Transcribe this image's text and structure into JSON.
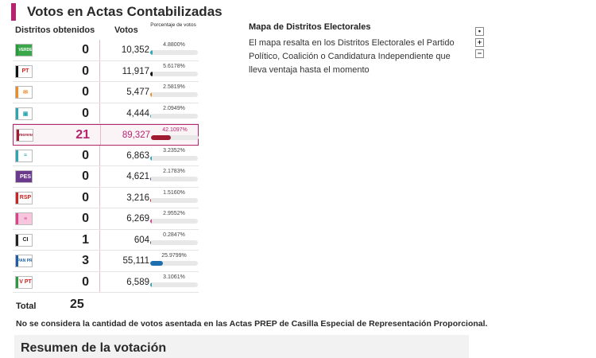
{
  "page_title": "Votos en Actas Contabilizadas",
  "colors": {
    "accent": "#b5246e"
  },
  "table": {
    "headers": {
      "districts": "Distritos obtenidos",
      "votes": "Votos",
      "percent": "Porcentaje de votos"
    },
    "rows": [
      {
        "party": "PVEM",
        "logo": "VERDE",
        "stripe": "#2a9a3e",
        "bg": "#3aa84a",
        "fg": "#ffffff",
        "districts": "0",
        "votes": "10,352",
        "percent": "4.8800%",
        "pct_value": 4.88,
        "bar_color": "#2aa7b5"
      },
      {
        "party": "PT",
        "logo": "PT",
        "stripe": "#111111",
        "bg": "#ffffff",
        "fg": "#d12020",
        "districts": "0",
        "votes": "11,917",
        "percent": "5.6178%",
        "pct_value": 5.6178,
        "bar_color": "#111111"
      },
      {
        "party": "Movimiento Ciudadano",
        "logo": "✉",
        "stripe": "#f08a24",
        "bg": "#ffffff",
        "fg": "#f08a24",
        "districts": "0",
        "votes": "5,477",
        "percent": "2.5819%",
        "pct_value": 2.5819,
        "bar_color": "#f08a24"
      },
      {
        "party": "Nueva Alianza",
        "logo": "▣",
        "stripe": "#2aa7b5",
        "bg": "#ffffff",
        "fg": "#2aa7b5",
        "districts": "0",
        "votes": "4,444",
        "percent": "2.0949%",
        "pct_value": 2.0949,
        "bar_color": "#2aa7b5"
      },
      {
        "party": "morena",
        "logo": "morena",
        "stripe": "#9e1b32",
        "bg": "#ffffff",
        "fg": "#9e1b32",
        "districts": "21",
        "votes": "89,327",
        "percent": "42.1097%",
        "pct_value": 42.1097,
        "bar_color": "#9e1b32",
        "highlight": true
      },
      {
        "party": "Nueva Alianza local",
        "logo": "≈",
        "stripe": "#2aa7b5",
        "bg": "#ffffff",
        "fg": "#2aa7b5",
        "districts": "0",
        "votes": "6,863",
        "percent": "3.2352%",
        "pct_value": 3.2352,
        "bar_color": "#2aa7b5"
      },
      {
        "party": "PES",
        "logo": "PES",
        "stripe": "#6b3a8c",
        "bg": "#6b3a8c",
        "fg": "#ffffff",
        "districts": "0",
        "votes": "4,621",
        "percent": "2.1783%",
        "pct_value": 2.1783,
        "bar_color": "#6b3a8c"
      },
      {
        "party": "RSP",
        "logo": "RSP",
        "stripe": "#d12020",
        "bg": "#ffffff",
        "fg": "#d12020",
        "districts": "0",
        "votes": "3,216",
        "percent": "1.5160%",
        "pct_value": 1.516,
        "bar_color": "#d12020"
      },
      {
        "party": "Fuerza por México",
        "logo": "≡",
        "stripe": "#e2418a",
        "bg": "#f7c6dc",
        "fg": "#e2418a",
        "districts": "0",
        "votes": "6,269",
        "percent": "2.9552%",
        "pct_value": 2.9552,
        "bar_color": "#e2418a"
      },
      {
        "party": "Candidatura Independiente",
        "logo": "CI",
        "stripe": "#222222",
        "bg": "#ffffff",
        "fg": "#222222",
        "districts": "1",
        "votes": "604",
        "percent": "0.2847%",
        "pct_value": 0.2847,
        "bar_color": "#555555"
      },
      {
        "party": "Coalición PAN-PRI-PRD",
        "logo": "PAN PRI",
        "stripe": "#1e5ea8",
        "bg": "#ffffff",
        "fg": "#1e5ea8",
        "districts": "3",
        "votes": "55,111",
        "percent": "25.9799%",
        "pct_value": 25.9799,
        "bar_color": "#1e6fb0"
      },
      {
        "party": "Coalición PVEM-PT",
        "logo": "V PT",
        "stripe": "#2a9a3e",
        "bg": "#ffffff",
        "fg": "#d12020",
        "districts": "0",
        "votes": "6,589",
        "percent": "3.1061%",
        "pct_value": 3.1061,
        "bar_color": "#2aa7b5"
      }
    ],
    "total_label": "Total",
    "total_value": "25"
  },
  "note": "No se considera la cantidad de votos asentada en las Actas PREP de Casilla Especial de Representación Proporcional.",
  "summary_title": "Resumen de la votación",
  "map": {
    "title": "Mapa de Distritos Electorales",
    "description": "El mapa resalta en los Distritos Electorales el Partido Político, Coalición o Candidatura Independiente que lleva ventaja hasta el momento",
    "controls": [
      "•",
      "+",
      "−"
    ]
  }
}
